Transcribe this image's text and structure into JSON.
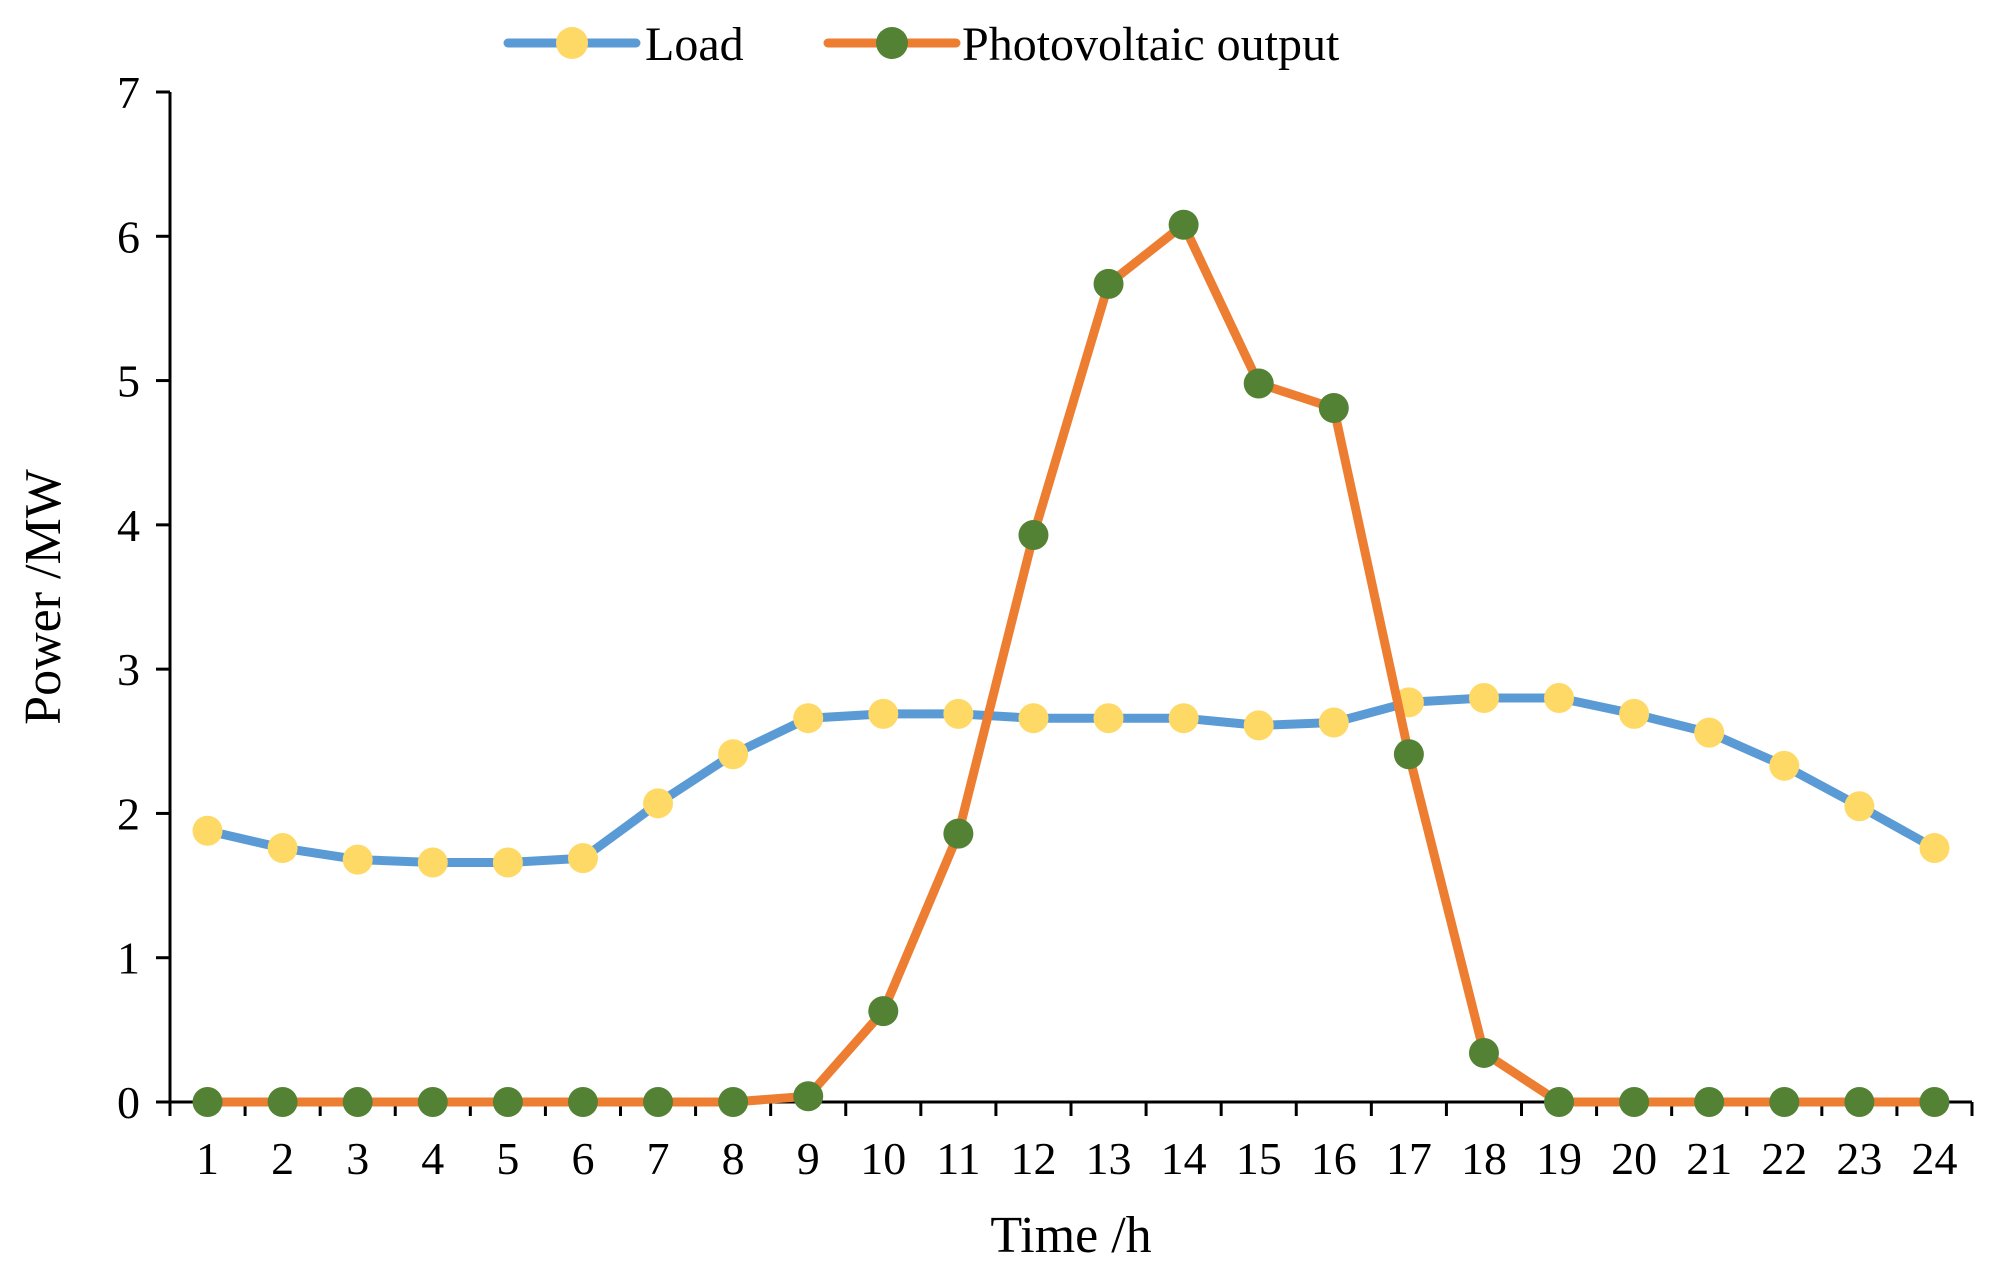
{
  "chart_data": {
    "type": "line",
    "title": "",
    "xlabel": "Time /h",
    "ylabel": "Power /MW",
    "x": [
      "1",
      "2",
      "3",
      "4",
      "5",
      "6",
      "7",
      "8",
      "9",
      "10",
      "11",
      "12",
      "13",
      "14",
      "15",
      "16",
      "17",
      "18",
      "19",
      "20",
      "21",
      "22",
      "23",
      "24"
    ],
    "ylim": [
      0,
      7
    ],
    "yticks": [
      "0",
      "1",
      "2",
      "3",
      "4",
      "5",
      "6",
      "7"
    ],
    "grid": false,
    "legend_position": "top-center",
    "series": [
      {
        "name": "Load",
        "line_color": "#5b9bd5",
        "marker_color": "#ffd966",
        "values": [
          1.88,
          1.76,
          1.68,
          1.66,
          1.66,
          1.69,
          2.07,
          2.41,
          2.66,
          2.69,
          2.69,
          2.66,
          2.66,
          2.66,
          2.61,
          2.63,
          2.77,
          2.8,
          2.8,
          2.69,
          2.56,
          2.33,
          2.05,
          1.76
        ]
      },
      {
        "name": "Photovoltaic output",
        "line_color": "#ed7d31",
        "marker_color": "#548235",
        "values": [
          0,
          0,
          0,
          0,
          0,
          0,
          0,
          0,
          0.04,
          0.63,
          1.86,
          3.93,
          5.67,
          6.08,
          4.98,
          4.81,
          2.41,
          0.34,
          0,
          0,
          0,
          0,
          0,
          0
        ]
      }
    ]
  }
}
